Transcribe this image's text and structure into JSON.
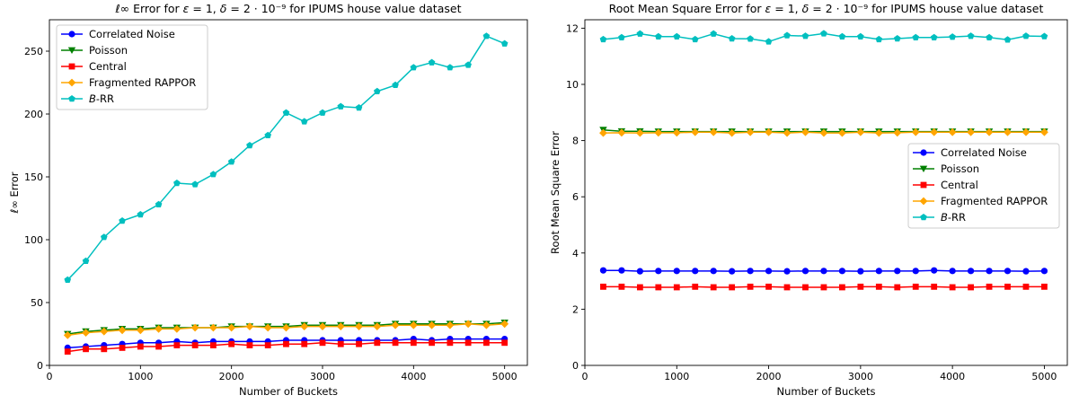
{
  "chart_data": [
    {
      "type": "line",
      "title": "ℓ∞ Error for ε = 1, δ = 2 · 10⁻⁹ for IPUMS house value dataset",
      "xlabel": "Number of Buckets",
      "ylabel": "ℓ∞ Error",
      "xlim": [
        0,
        5250
      ],
      "ylim": [
        0,
        275
      ],
      "xticks": [
        0,
        1000,
        2000,
        3000,
        4000,
        5000
      ],
      "yticks": [
        0,
        50,
        100,
        150,
        200,
        250
      ],
      "grid": false,
      "legend_position": "top-left",
      "x": [
        200,
        400,
        600,
        800,
        1000,
        1200,
        1400,
        1600,
        1800,
        2000,
        2200,
        2400,
        2600,
        2800,
        3000,
        3200,
        3400,
        3600,
        3800,
        4000,
        4200,
        4400,
        4600,
        4800,
        5000
      ],
      "series": [
        {
          "name": "Correlated Noise",
          "color": "#0000ff",
          "marker": "circle",
          "values": [
            14,
            15,
            16,
            17,
            18,
            18,
            19,
            18,
            19,
            19,
            19,
            19,
            20,
            20,
            20,
            20,
            20,
            20,
            20,
            21,
            20,
            21,
            21,
            21,
            21
          ]
        },
        {
          "name": "Poisson",
          "color": "#008000",
          "marker": "triangle-down",
          "values": [
            25,
            27,
            28,
            29,
            29,
            30,
            30,
            30,
            30,
            31,
            31,
            31,
            31,
            32,
            32,
            32,
            32,
            32,
            33,
            33,
            33,
            33,
            33,
            33,
            34
          ]
        },
        {
          "name": "Central",
          "color": "#ff0000",
          "marker": "square",
          "values": [
            11,
            13,
            13,
            14,
            15,
            15,
            16,
            16,
            16,
            17,
            16,
            16,
            17,
            17,
            18,
            17,
            17,
            18,
            18,
            18,
            18,
            18,
            18,
            18,
            18
          ]
        },
        {
          "name": "Fragmented RAPPOR",
          "color": "#ffa500",
          "marker": "diamond",
          "values": [
            24,
            26,
            27,
            28,
            28,
            29,
            29,
            30,
            30,
            30,
            31,
            30,
            30,
            31,
            31,
            31,
            31,
            31,
            32,
            32,
            32,
            32,
            33,
            32,
            33
          ]
        },
        {
          "name": "B-RR",
          "color": "#00bfbf",
          "marker": "pentagon",
          "values": [
            68,
            83,
            102,
            115,
            120,
            128,
            145,
            144,
            152,
            162,
            175,
            183,
            201,
            194,
            201,
            206,
            205,
            218,
            223,
            237,
            241,
            237,
            239,
            262,
            256
          ]
        }
      ]
    },
    {
      "type": "line",
      "title": "Root Mean Square Error for ε = 1, δ = 2 · 10⁻⁹ for IPUMS house value dataset",
      "xlabel": "Number of Buckets",
      "ylabel": "Root Mean Square Error",
      "xlim": [
        0,
        5250
      ],
      "ylim": [
        0,
        12.3
      ],
      "xticks": [
        0,
        1000,
        2000,
        3000,
        4000,
        5000
      ],
      "yticks": [
        0,
        2,
        4,
        6,
        8,
        10,
        12
      ],
      "grid": false,
      "legend_position": "center-right",
      "x": [
        200,
        400,
        600,
        800,
        1000,
        1200,
        1400,
        1600,
        1800,
        2000,
        2200,
        2400,
        2600,
        2800,
        3000,
        3200,
        3400,
        3600,
        3800,
        4000,
        4200,
        4400,
        4600,
        4800,
        5000
      ],
      "series": [
        {
          "name": "Correlated Noise",
          "color": "#0000ff",
          "marker": "circle",
          "values": [
            3.38,
            3.38,
            3.35,
            3.36,
            3.36,
            3.36,
            3.36,
            3.35,
            3.36,
            3.36,
            3.35,
            3.36,
            3.36,
            3.36,
            3.35,
            3.36,
            3.36,
            3.36,
            3.38,
            3.36,
            3.36,
            3.36,
            3.36,
            3.35,
            3.36
          ]
        },
        {
          "name": "Poisson",
          "color": "#008000",
          "marker": "triangle-down",
          "values": [
            8.38,
            8.33,
            8.33,
            8.32,
            8.32,
            8.32,
            8.32,
            8.32,
            8.32,
            8.32,
            8.32,
            8.32,
            8.32,
            8.32,
            8.32,
            8.32,
            8.32,
            8.32,
            8.32,
            8.32,
            8.32,
            8.32,
            8.32,
            8.32,
            8.32
          ]
        },
        {
          "name": "Central",
          "color": "#ff0000",
          "marker": "square",
          "values": [
            2.8,
            2.8,
            2.78,
            2.78,
            2.78,
            2.8,
            2.78,
            2.78,
            2.8,
            2.8,
            2.78,
            2.78,
            2.78,
            2.78,
            2.8,
            2.8,
            2.78,
            2.8,
            2.8,
            2.78,
            2.78,
            2.8,
            2.8,
            2.8,
            2.8
          ]
        },
        {
          "name": "Fragmented RAPPOR",
          "color": "#ffa500",
          "marker": "diamond",
          "values": [
            8.27,
            8.28,
            8.27,
            8.28,
            8.28,
            8.3,
            8.3,
            8.27,
            8.3,
            8.3,
            8.27,
            8.3,
            8.27,
            8.27,
            8.3,
            8.27,
            8.28,
            8.3,
            8.3,
            8.3,
            8.3,
            8.3,
            8.3,
            8.3,
            8.3
          ]
        },
        {
          "name": "B-RR",
          "color": "#00bfbf",
          "marker": "pentagon",
          "values": [
            11.6,
            11.67,
            11.8,
            11.7,
            11.7,
            11.6,
            11.8,
            11.63,
            11.62,
            11.52,
            11.74,
            11.72,
            11.81,
            11.7,
            11.7,
            11.6,
            11.63,
            11.67,
            11.67,
            11.69,
            11.72,
            11.67,
            11.59,
            11.72,
            11.71
          ]
        }
      ]
    }
  ]
}
